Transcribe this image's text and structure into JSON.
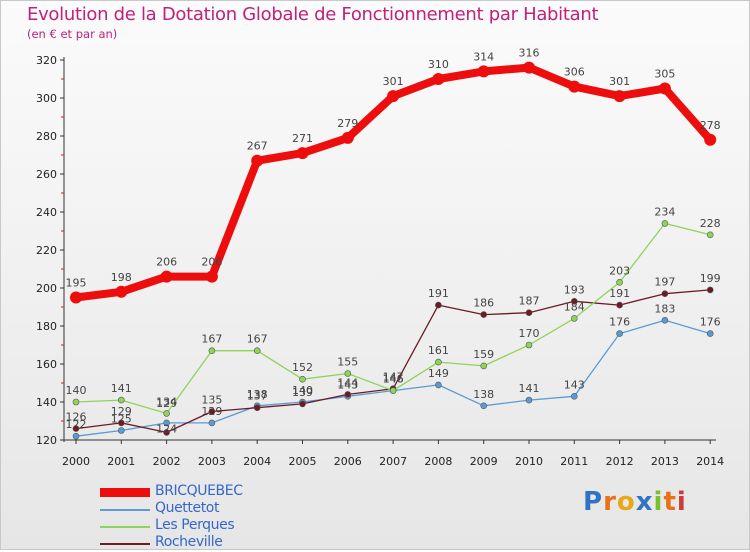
{
  "title": "Evolution de la Dotation Globale de Fonctionnement par Habitant",
  "subtitle": "(en € et par an)",
  "logo": {
    "letters": [
      "P",
      "r",
      "o",
      "x",
      "i",
      "t",
      "i"
    ],
    "colors": [
      "#2f74c4",
      "#e8711a",
      "#e8a81a",
      "#2f74c4",
      "#7cbf2d",
      "#e8711a",
      "#d03a3a"
    ]
  },
  "chart_data": {
    "type": "line",
    "x": [
      "2000",
      "2001",
      "2002",
      "2003",
      "2004",
      "2005",
      "2006",
      "2007",
      "2008",
      "2009",
      "2010",
      "2011",
      "2012",
      "2013",
      "2014"
    ],
    "ylim": [
      120,
      320
    ],
    "yticks": [
      120,
      140,
      160,
      180,
      200,
      220,
      240,
      260,
      280,
      300,
      320
    ],
    "grid": false,
    "legend_position": "bottom-left",
    "series": [
      {
        "name": "Quettetot",
        "color": "#5b9bd5",
        "values": [
          122,
          125,
          129,
          129,
          138,
          140,
          143,
          146,
          149,
          138,
          141,
          143,
          176,
          183,
          176
        ],
        "labels": [
          "122",
          "125",
          "129",
          "129",
          "138",
          "140",
          "143",
          "146",
          "149",
          "138",
          "141",
          "143",
          "176",
          "183",
          "176"
        ],
        "label_offsets": [
          0,
          0,
          -1,
          0,
          0,
          0,
          0,
          0,
          0,
          0,
          0,
          0,
          0,
          0,
          0
        ]
      },
      {
        "name": "Rocheville",
        "color": "#6e1a24",
        "values": [
          126,
          129,
          124,
          135,
          137,
          139,
          144,
          147,
          191,
          186,
          187,
          193,
          191,
          197,
          199
        ],
        "labels": [
          "126",
          "129",
          "124",
          "135",
          "137",
          "139",
          "144",
          "147",
          "191",
          "186",
          "187",
          "193",
          "191",
          "197",
          "199"
        ],
        "label_offsets": [
          0,
          0,
          1,
          0,
          0,
          0,
          0,
          0,
          0,
          0,
          0,
          0,
          0,
          0,
          0
        ]
      },
      {
        "name": "Les Perques",
        "color": "#8ed45a",
        "values": [
          140,
          141,
          134,
          167,
          167,
          152,
          155,
          146,
          161,
          159,
          170,
          184,
          203,
          234,
          228
        ],
        "labels": [
          "140",
          "141",
          "134",
          "167",
          "167",
          "152",
          "155",
          "146",
          "161",
          "159",
          "170",
          "184",
          "203",
          "234",
          "228"
        ],
        "label_offsets": [
          0,
          0,
          0,
          0,
          0,
          0,
          0,
          0,
          0,
          0,
          0,
          0,
          0,
          0,
          0
        ]
      },
      {
        "name": "BRICQUEBEC",
        "color": "#ee0d0d",
        "values": [
          195,
          198,
          206,
          206,
          267,
          271,
          279,
          301,
          310,
          314,
          316,
          306,
          301,
          305,
          278
        ],
        "labels": [
          "195",
          "198",
          "206",
          "206",
          "267",
          "271",
          "279",
          "301",
          "310",
          "314",
          "316",
          "306",
          "301",
          "305",
          "278"
        ],
        "label_offsets": [
          0,
          0,
          0,
          0,
          0,
          0,
          0,
          0,
          0,
          0,
          0,
          0,
          0,
          0,
          0
        ]
      }
    ],
    "legend_order": [
      "BRICQUEBEC",
      "Quettetot",
      "Les Perques",
      "Rocheville"
    ]
  }
}
